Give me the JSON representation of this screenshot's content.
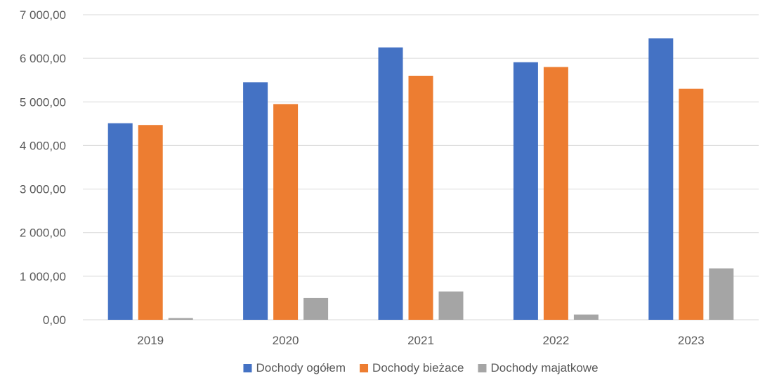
{
  "chart_data": {
    "type": "bar",
    "categories": [
      "2019",
      "2020",
      "2021",
      "2022",
      "2023"
    ],
    "series": [
      {
        "name": "Dochody ogółem",
        "color": "#4472C4",
        "values": [
          4510,
          5450,
          6250,
          5910,
          6460
        ]
      },
      {
        "name": "Dochody bieżace",
        "color": "#ED7D31",
        "values": [
          4470,
          4950,
          5600,
          5800,
          5300
        ]
      },
      {
        "name": "Dochody majatkowe",
        "color": "#A5A5A5",
        "values": [
          40,
          500,
          650,
          120,
          1180
        ]
      }
    ],
    "y_ticks": [
      "0,00",
      "1 000,00",
      "2 000,00",
      "3 000,00",
      "4 000,00",
      "5 000,00",
      "6 000,00",
      "7 000,00"
    ],
    "ylim": [
      0,
      7000
    ],
    "grid": true,
    "legend_position": "bottom-center",
    "gridline_color": "#D9D9D9",
    "text_color": "#595959"
  }
}
